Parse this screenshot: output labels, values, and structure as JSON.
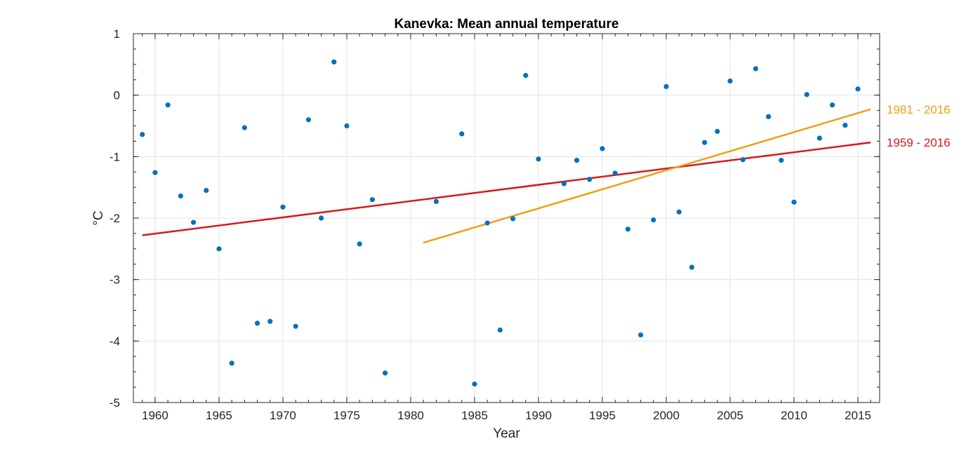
{
  "chart_data": {
    "type": "scatter",
    "title": "Kanevka: Mean annual temperature",
    "xlabel": "Year",
    "ylabel": "°C",
    "xlim": [
      1958.3,
      2016.7
    ],
    "ylim": [
      -5,
      1
    ],
    "xticks": [
      1960,
      1965,
      1970,
      1975,
      1980,
      1985,
      1990,
      1995,
      2000,
      2005,
      2010,
      2015
    ],
    "yticks": [
      -5,
      -4,
      -3,
      -2,
      -1,
      0,
      1
    ],
    "grid": true,
    "points_color": "#0072BD",
    "series": [
      {
        "type": "scatter",
        "points": [
          [
            1959,
            -0.64
          ],
          [
            1960,
            -1.26
          ],
          [
            1961,
            -0.16
          ],
          [
            1962,
            -1.64
          ],
          [
            1963,
            -2.07
          ],
          [
            1964,
            -1.55
          ],
          [
            1965,
            -2.5
          ],
          [
            1966,
            -4.36
          ],
          [
            1967,
            -0.53
          ],
          [
            1968,
            -3.71
          ],
          [
            1969,
            -3.68
          ],
          [
            1970,
            -1.82
          ],
          [
            1971,
            -3.76
          ],
          [
            1972,
            -0.4
          ],
          [
            1973,
            -2.0
          ],
          [
            1974,
            0.54
          ],
          [
            1975,
            -0.5
          ],
          [
            1976,
            -2.42
          ],
          [
            1977,
            -1.7
          ],
          [
            1978,
            -4.52
          ],
          [
            1982,
            -1.73
          ],
          [
            1984,
            -0.63
          ],
          [
            1985,
            -4.7
          ],
          [
            1986,
            -2.08
          ],
          [
            1987,
            -3.82
          ],
          [
            1988,
            -2.01
          ],
          [
            1989,
            0.32
          ],
          [
            1990,
            -1.04
          ],
          [
            1992,
            -1.44
          ],
          [
            1993,
            -1.06
          ],
          [
            1994,
            -1.37
          ],
          [
            1995,
            -0.87
          ],
          [
            1996,
            -1.27
          ],
          [
            1997,
            -2.18
          ],
          [
            1998,
            -3.9
          ],
          [
            1999,
            -2.03
          ],
          [
            2000,
            0.14
          ],
          [
            2001,
            -1.9
          ],
          [
            2002,
            -2.8
          ],
          [
            2003,
            -0.77
          ],
          [
            2004,
            -0.59
          ],
          [
            2005,
            0.23
          ],
          [
            2006,
            -1.05
          ],
          [
            2007,
            0.43
          ],
          [
            2008,
            -0.35
          ],
          [
            2009,
            -1.06
          ],
          [
            2010,
            -1.74
          ],
          [
            2011,
            0.01
          ],
          [
            2012,
            -0.7
          ],
          [
            2013,
            -0.16
          ],
          [
            2014,
            -0.49
          ],
          [
            2015,
            0.1
          ]
        ]
      }
    ],
    "trend_lines": [
      {
        "label": "1959 - 2016",
        "color": "#D7191C",
        "x": [
          1959,
          2016
        ],
        "y": [
          -2.28,
          -0.77
        ]
      },
      {
        "label": "1981 - 2016",
        "color": "#EDA016",
        "x": [
          1981,
          2016
        ],
        "y": [
          -2.4,
          -0.23
        ]
      }
    ]
  }
}
